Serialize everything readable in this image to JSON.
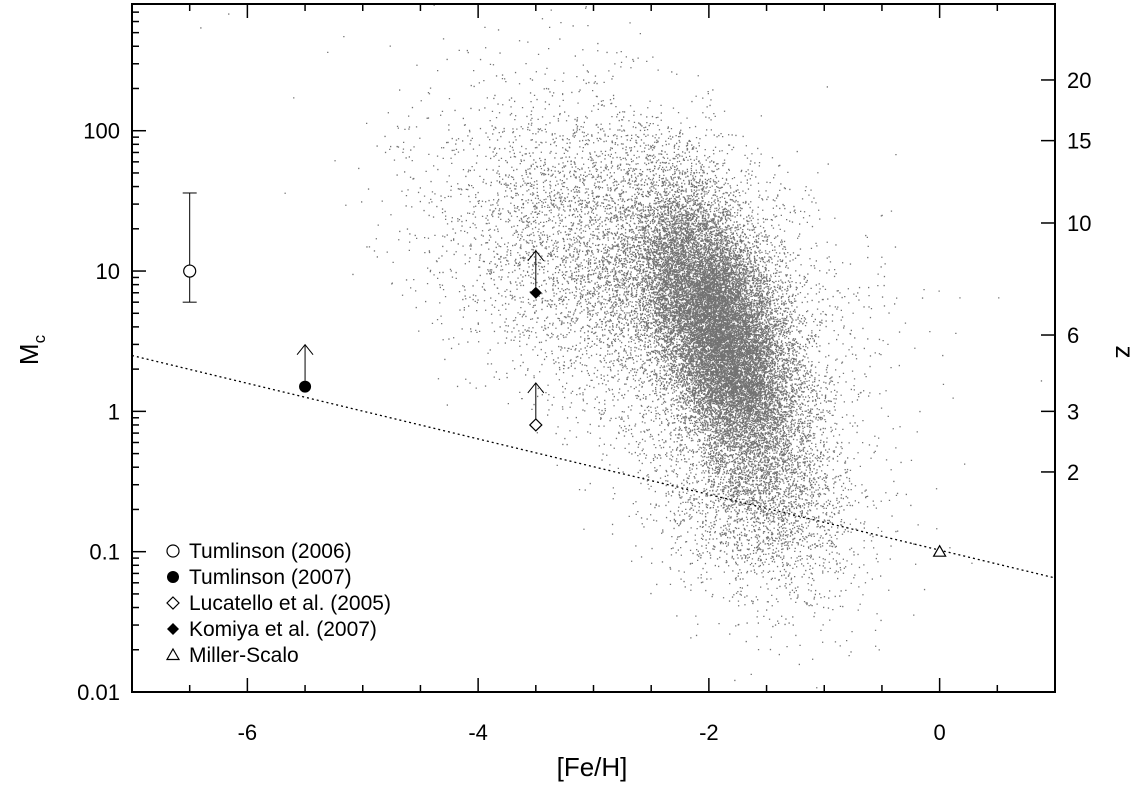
{
  "chart_data": {
    "type": "scatter",
    "xlabel": "[Fe/H]",
    "ylabel": "M",
    "ylabel_subscript": "c",
    "y2label": "z",
    "xlim": [
      -7,
      1
    ],
    "ylim": [
      0.01,
      800
    ],
    "yscale": "log",
    "x_ticks": [
      {
        "value": -6,
        "label": "-6"
      },
      {
        "value": -4,
        "label": "-4"
      },
      {
        "value": -2,
        "label": "-2"
      },
      {
        "value": 0,
        "label": "0"
      }
    ],
    "y_ticks": [
      {
        "value": 0.01,
        "label": "0.01"
      },
      {
        "value": 0.1,
        "label": "0.1"
      },
      {
        "value": 1,
        "label": "1"
      },
      {
        "value": 10,
        "label": "10"
      },
      {
        "value": 100,
        "label": "100"
      }
    ],
    "z_ticks": [
      {
        "value": 2,
        "label": "2",
        "y_equiv": 0.37
      },
      {
        "value": 3,
        "label": "3",
        "y_equiv": 1.0
      },
      {
        "value": 6,
        "label": "6",
        "y_equiv": 3.5
      },
      {
        "value": 10,
        "label": "10",
        "y_equiv": 22
      },
      {
        "value": 15,
        "label": "15",
        "y_equiv": 85
      },
      {
        "value": 20,
        "label": "20",
        "y_equiv": 230
      }
    ],
    "points": [
      {
        "name": "Tumlinson (2006)",
        "marker": "open-circle",
        "x": -6.5,
        "y": 10,
        "err_low": 6,
        "err_high": 36
      },
      {
        "name": "Tumlinson (2007)",
        "marker": "filled-circle",
        "x": -5.5,
        "y": 1.5,
        "lower_limit": true
      },
      {
        "name": "Lucatello et al. (2005)",
        "marker": "open-diamond",
        "x": -3.5,
        "y": 0.8,
        "lower_limit": true
      },
      {
        "name": "Komiya et al. (2007)",
        "marker": "filled-diamond",
        "x": -3.5,
        "y": 7,
        "lower_limit": true
      },
      {
        "name": "Miller-Scalo",
        "marker": "open-triangle",
        "x": 0,
        "y": 0.1
      }
    ],
    "dotted_line": {
      "x": [
        -7,
        1
      ],
      "y": [
        2.5,
        0.065
      ]
    },
    "legend": [
      {
        "marker": "open-circle",
        "label": "Tumlinson (2006)"
      },
      {
        "marker": "filled-circle",
        "label": "Tumlinson (2007)"
      },
      {
        "marker": "open-diamond",
        "label": "Lucatello et al. (2005)"
      },
      {
        "marker": "filled-diamond",
        "label": "Komiya et al. (2007)"
      },
      {
        "marker": "open-triangle",
        "label": "Miller-Scalo"
      }
    ],
    "legend_position": "bottom-left",
    "grid": false
  }
}
